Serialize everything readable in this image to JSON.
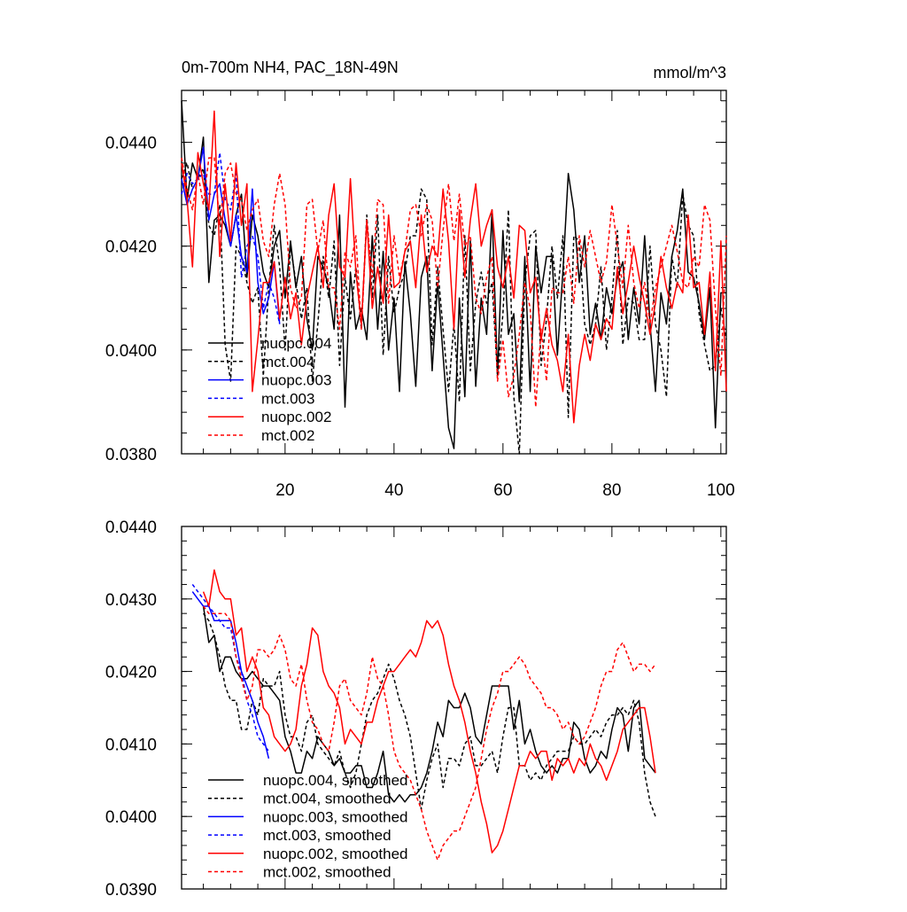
{
  "chart_data": [
    {
      "type": "line",
      "title": "0m-700m NH4, PAC_18N-49N",
      "units": "mmol/m^3",
      "xlim": [
        1,
        101
      ],
      "ylim": [
        0.038,
        0.045
      ],
      "x_ticks": [
        "20",
        "40",
        "60",
        "80",
        "100"
      ],
      "y_ticks": [
        "0.0380",
        "0.0400",
        "0.0420",
        "0.0440"
      ],
      "legend_placement": "bottom-left",
      "series": [
        {
          "name": "nuopc.004",
          "color": "#000000",
          "dash": "solid",
          "x_start": 1,
          "values": [
            0.0448,
            0.0429,
            0.0436,
            0.0433,
            0.0441,
            0.0413,
            0.0425,
            0.0426,
            0.0424,
            0.042,
            0.0426,
            0.043,
            0.0414,
            0.0426,
            0.0422,
            0.0415,
            0.0412,
            0.042,
            0.0423,
            0.041,
            0.0421,
            0.0412,
            0.0418,
            0.0406,
            0.04,
            0.0418,
            0.0416,
            0.0412,
            0.0404,
            0.0426,
            0.0389,
            0.0415,
            0.0404,
            0.0408,
            0.0402,
            0.0422,
            0.0404,
            0.0419,
            0.04,
            0.041,
            0.0392,
            0.0417,
            0.0407,
            0.0393,
            0.0414,
            0.0418,
            0.0396,
            0.0413,
            0.0399,
            0.0385,
            0.0381,
            0.041,
            0.0391,
            0.0421,
            0.0393,
            0.041,
            0.0403,
            0.0427,
            0.0395,
            0.0423,
            0.0403,
            0.0407,
            0.039,
            0.0418,
            0.0392,
            0.042,
            0.0411,
            0.0418,
            0.0418,
            0.0399,
            0.0415,
            0.0434,
            0.0427,
            0.0413,
            0.0422,
            0.0403,
            0.0409,
            0.0402,
            0.0412,
            0.0407,
            0.0414,
            0.0417,
            0.0402,
            0.0412,
            0.0405,
            0.0422,
            0.0405,
            0.0392,
            0.0411,
            0.0405,
            0.0418,
            0.0423,
            0.0431,
            0.0415,
            0.0414,
            0.0409,
            0.0402,
            0.0412,
            0.0385,
            0.0411,
            0.0411
          ]
        },
        {
          "name": "mct.004",
          "color": "#000000",
          "dash": "dashed",
          "x_start": 1,
          "values": [
            0.0433,
            0.0436,
            0.0431,
            0.0433,
            0.0435,
            0.0424,
            0.0422,
            0.0428,
            0.0401,
            0.0394,
            0.042,
            0.0418,
            0.0413,
            0.0409,
            0.0412,
            0.0395,
            0.0412,
            0.0424,
            0.0416,
            0.04,
            0.042,
            0.0413,
            0.0406,
            0.0412,
            0.0394,
            0.0405,
            0.0418,
            0.041,
            0.0421,
            0.0397,
            0.0414,
            0.0406,
            0.0416,
            0.0404,
            0.0426,
            0.041,
            0.0426,
            0.0399,
            0.0418,
            0.0407,
            0.0412,
            0.0415,
            0.0422,
            0.0422,
            0.0431,
            0.0429,
            0.0401,
            0.0416,
            0.0404,
            0.0392,
            0.0405,
            0.039,
            0.0422,
            0.0396,
            0.0409,
            0.0415,
            0.0409,
            0.0413,
            0.0395,
            0.0407,
            0.0427,
            0.0391,
            0.038,
            0.0413,
            0.0422,
            0.0423,
            0.0397,
            0.0406,
            0.042,
            0.041,
            0.0422,
            0.0387,
            0.0422,
            0.0421,
            0.0405,
            0.0401,
            0.0405,
            0.0416,
            0.04,
            0.041,
            0.0423,
            0.0401,
            0.041,
            0.0409,
            0.0402,
            0.0402,
            0.042,
            0.0405,
            0.04,
            0.0391,
            0.0418,
            0.0412,
            0.043,
            0.0424,
            0.0422,
            0.0407,
            0.0401,
            0.0396,
            0.0397,
            0.0408,
            0.0402
          ]
        },
        {
          "name": "nuopc.003",
          "color": "#0000ff",
          "dash": "solid",
          "x_start": 1,
          "values": [
            0.0433,
            0.0428,
            0.0431,
            0.0433,
            0.0439,
            0.0425,
            0.043,
            0.0432,
            0.0425,
            0.042,
            0.0426,
            0.0418,
            0.0415,
            0.0431,
            0.0413,
            0.0407,
            0.041,
            0.0417,
            0.0405
          ]
        },
        {
          "name": "mct.003",
          "color": "#0000ff",
          "dash": "dashed",
          "x_start": 1,
          "values": [
            0.043,
            0.0434,
            0.0432,
            0.0433,
            0.0434,
            0.043,
            0.043,
            0.0438,
            0.0429,
            0.0427,
            0.0434,
            0.0414,
            0.042,
            0.0422,
            0.0418,
            0.0408,
            0.0413,
            0.041,
            0.0405
          ]
        },
        {
          "name": "nuopc.002",
          "color": "#ff0000",
          "dash": "solid",
          "x_start": 1,
          "values": [
            0.0436,
            0.0429,
            0.0416,
            0.0438,
            0.0432,
            0.0427,
            0.0446,
            0.0418,
            0.0432,
            0.0421,
            0.0436,
            0.0424,
            0.0432,
            0.0392,
            0.0402,
            0.0413,
            0.0413,
            0.0417,
            0.0406,
            0.0414,
            0.0406,
            0.0411,
            0.0401,
            0.041,
            0.0415,
            0.042,
            0.0412,
            0.0426,
            0.0432,
            0.0416,
            0.0414,
            0.0433,
            0.0415,
            0.0405,
            0.0425,
            0.0408,
            0.0416,
            0.0409,
            0.0426,
            0.0412,
            0.0413,
            0.0419,
            0.0421,
            0.0412,
            0.0426,
            0.0415,
            0.042,
            0.0418,
            0.0431,
            0.0421,
            0.0404,
            0.0427,
            0.0414,
            0.0425,
            0.0432,
            0.042,
            0.0424,
            0.0427,
            0.0416,
            0.0412,
            0.0418,
            0.041,
            0.0424,
            0.0423,
            0.0411,
            0.0414,
            0.0402,
            0.0408,
            0.0401,
            0.0398,
            0.0392,
            0.0403,
            0.0386,
            0.0397,
            0.0403,
            0.0398,
            0.0405,
            0.0402,
            0.0406,
            0.0404,
            0.0416,
            0.0407,
            0.0413,
            0.042,
            0.0414,
            0.0409,
            0.0403,
            0.0409,
            0.0418,
            0.0412,
            0.0408,
            0.0413,
            0.0411,
            0.0426,
            0.0412,
            0.0413,
            0.0403,
            0.0415,
            0.0396,
            0.0421,
            0.0392
          ]
        },
        {
          "name": "mct.002",
          "color": "#ff0000",
          "dash": "dashed",
          "x_start": 1,
          "values": [
            0.0437,
            0.0431,
            0.0427,
            0.0434,
            0.0428,
            0.0437,
            0.0437,
            0.0424,
            0.0434,
            0.0436,
            0.043,
            0.0429,
            0.0423,
            0.0427,
            0.0429,
            0.0421,
            0.0418,
            0.0428,
            0.0434,
            0.0428,
            0.0412,
            0.0408,
            0.041,
            0.0428,
            0.0429,
            0.0419,
            0.0425,
            0.0412,
            0.0412,
            0.0404,
            0.0419,
            0.0416,
            0.0422,
            0.0404,
            0.0425,
            0.0414,
            0.0429,
            0.0428,
            0.0409,
            0.0422,
            0.0414,
            0.0419,
            0.0427,
            0.0428,
            0.0422,
            0.0428,
            0.0425,
            0.0412,
            0.0423,
            0.0432,
            0.0421,
            0.043,
            0.042,
            0.0422,
            0.041,
            0.0407,
            0.0414,
            0.0418,
            0.0394,
            0.0402,
            0.0391,
            0.0395,
            0.0403,
            0.0413,
            0.0408,
            0.0389,
            0.0404,
            0.0394,
            0.0412,
            0.0411,
            0.0411,
            0.0418,
            0.0409,
            0.0422,
            0.0416,
            0.0423,
            0.0418,
            0.0413,
            0.0417,
            0.0428,
            0.042,
            0.0412,
            0.0424,
            0.0413,
            0.0408,
            0.0413,
            0.0405,
            0.0412,
            0.0416,
            0.042,
            0.0424,
            0.0419,
            0.0413,
            0.0412,
            0.0418,
            0.0416,
            0.0428,
            0.0425,
            0.0408,
            0.0395,
            0.0422
          ]
        }
      ]
    },
    {
      "type": "line",
      "xlim": [
        1,
        101
      ],
      "ylim": [
        0.039,
        0.044
      ],
      "y_ticks": [
        "0.0390",
        "0.0400",
        "0.0410",
        "0.0420",
        "0.0430",
        "0.0440"
      ],
      "legend_placement": "bottom-left",
      "series": [
        {
          "name": "nuopc.004, smoothed",
          "color": "#000000",
          "dash": "solid",
          "x_start": 5,
          "values": [
            0.0429,
            0.0424,
            0.0425,
            0.042,
            0.0422,
            0.0422,
            0.042,
            0.0419,
            0.0419,
            0.042,
            0.0419,
            0.0418,
            0.0418,
            0.0417,
            0.0416,
            0.0411,
            0.0409,
            0.0406,
            0.0406,
            0.0409,
            0.0408,
            0.0411,
            0.041,
            0.0409,
            0.0407,
            0.0408,
            0.0406,
            0.0406,
            0.0407,
            0.0407,
            0.0404,
            0.0404,
            0.0406,
            0.0409,
            0.0403,
            0.0402,
            0.0403,
            0.0402,
            0.0403,
            0.0403,
            0.0404,
            0.0406,
            0.0409,
            0.0413,
            0.0411,
            0.0416,
            0.0415,
            0.0415,
            0.0417,
            0.0415,
            0.0411,
            0.041,
            0.0414,
            0.0418,
            0.0418,
            0.0418,
            0.0418,
            0.0412,
            0.0416,
            0.041,
            0.0412,
            0.0409,
            0.0407,
            0.0406,
            0.0407,
            0.0406,
            0.0408,
            0.0408,
            0.0413,
            0.0412,
            0.0408,
            0.0406,
            0.0407,
            0.0409,
            0.0408,
            0.0412,
            0.0415,
            0.0414,
            0.0409,
            0.0415,
            0.0416,
            0.0408,
            0.0407,
            0.0406
          ]
        },
        {
          "name": "mct.004, smoothed",
          "color": "#000000",
          "dash": "dashed",
          "x_start": 5,
          "values": [
            0.0428,
            0.0427,
            0.0425,
            0.0422,
            0.0418,
            0.0416,
            0.0416,
            0.0412,
            0.0412,
            0.0416,
            0.0414,
            0.0419,
            0.0418,
            0.0418,
            0.042,
            0.0414,
            0.0411,
            0.0411,
            0.0409,
            0.0413,
            0.0414,
            0.041,
            0.0409,
            0.0408,
            0.0407,
            0.0409,
            0.0406,
            0.0404,
            0.0406,
            0.041,
            0.0414,
            0.0416,
            0.0417,
            0.0419,
            0.0421,
            0.0419,
            0.0416,
            0.0414,
            0.0411,
            0.0406,
            0.0401,
            0.0405,
            0.0408,
            0.041,
            0.0404,
            0.0408,
            0.0408,
            0.0407,
            0.041,
            0.0411,
            0.0407,
            0.0407,
            0.0408,
            0.0409,
            0.0406,
            0.0411,
            0.0415,
            0.0415,
            0.0407,
            0.0407,
            0.0405,
            0.0406,
            0.0405,
            0.0407,
            0.0408,
            0.0409,
            0.0409,
            0.0409,
            0.0411,
            0.041,
            0.041,
            0.0411,
            0.0412,
            0.0411,
            0.0413,
            0.0414,
            0.0414,
            0.0415,
            0.0414,
            0.0416,
            0.0413,
            0.0406,
            0.0402,
            0.04
          ]
        },
        {
          "name": "nuopc.003, smoothed",
          "color": "#0000ff",
          "dash": "solid",
          "x_start": 3,
          "values": [
            0.0431,
            0.043,
            0.0429,
            0.0429,
            0.0427,
            0.0427,
            0.0427,
            0.0427,
            0.0424,
            0.042,
            0.0418,
            0.0416,
            0.0413,
            0.0411,
            0.0408
          ]
        },
        {
          "name": "mct.003, smoothed",
          "color": "#0000ff",
          "dash": "dashed",
          "x_start": 3,
          "values": [
            0.0432,
            0.0431,
            0.043,
            0.0429,
            0.0428,
            0.0427,
            0.0426,
            0.0426,
            0.0422,
            0.042,
            0.0416,
            0.0414,
            0.0411,
            0.041,
            0.0409
          ]
        },
        {
          "name": "nuopc.002, smoothed",
          "color": "#ff0000",
          "dash": "solid",
          "x_start": 5,
          "values": [
            0.0431,
            0.0429,
            0.0434,
            0.0431,
            0.043,
            0.043,
            0.0425,
            0.0426,
            0.042,
            0.0422,
            0.042,
            0.0415,
            0.0414,
            0.0411,
            0.041,
            0.0409,
            0.041,
            0.0412,
            0.0418,
            0.0421,
            0.0426,
            0.0425,
            0.042,
            0.0418,
            0.0417,
            0.0415,
            0.041,
            0.0412,
            0.0411,
            0.041,
            0.0413,
            0.0413,
            0.0416,
            0.0418,
            0.042,
            0.042,
            0.0421,
            0.0422,
            0.0423,
            0.0422,
            0.0424,
            0.0427,
            0.0426,
            0.0427,
            0.0425,
            0.0421,
            0.0418,
            0.0416,
            0.0413,
            0.0409,
            0.0406,
            0.0402,
            0.0399,
            0.0395,
            0.0396,
            0.0398,
            0.0401,
            0.0404,
            0.0407,
            0.0407,
            0.0409,
            0.0408,
            0.0409,
            0.0409,
            0.0405,
            0.0408,
            0.0407,
            0.0408,
            0.0406,
            0.0408,
            0.0407,
            0.041,
            0.0408,
            0.0407,
            0.0405,
            0.0407,
            0.0409,
            0.0412,
            0.0413,
            0.0414,
            0.0415,
            0.0415,
            0.0411,
            0.0406
          ]
        },
        {
          "name": "mct.002, smoothed",
          "color": "#ff0000",
          "dash": "dashed",
          "x_start": 5,
          "values": [
            0.0429,
            0.0428,
            0.0428,
            0.0428,
            0.0428,
            0.0427,
            0.0422,
            0.0419,
            0.0416,
            0.0418,
            0.0423,
            0.0423,
            0.0422,
            0.0423,
            0.0425,
            0.0423,
            0.0419,
            0.0418,
            0.0421,
            0.0416,
            0.0413,
            0.0412,
            0.041,
            0.0409,
            0.0413,
            0.0418,
            0.0419,
            0.0416,
            0.0415,
            0.0414,
            0.0417,
            0.0422,
            0.0419,
            0.0418,
            0.0414,
            0.0409,
            0.0407,
            0.0406,
            0.0405,
            0.0403,
            0.0401,
            0.0398,
            0.0396,
            0.0394,
            0.0396,
            0.0397,
            0.0398,
            0.0398,
            0.04,
            0.0402,
            0.0404,
            0.0408,
            0.0412,
            0.0415,
            0.0417,
            0.042,
            0.042,
            0.0421,
            0.0422,
            0.0421,
            0.0419,
            0.0418,
            0.0417,
            0.0415,
            0.0415,
            0.0414,
            0.0412,
            0.0413,
            0.0411,
            0.041,
            0.0411,
            0.0413,
            0.0415,
            0.0418,
            0.042,
            0.042,
            0.0423,
            0.0424,
            0.0422,
            0.042,
            0.0421,
            0.0421,
            0.042,
            0.0421
          ]
        }
      ]
    }
  ]
}
